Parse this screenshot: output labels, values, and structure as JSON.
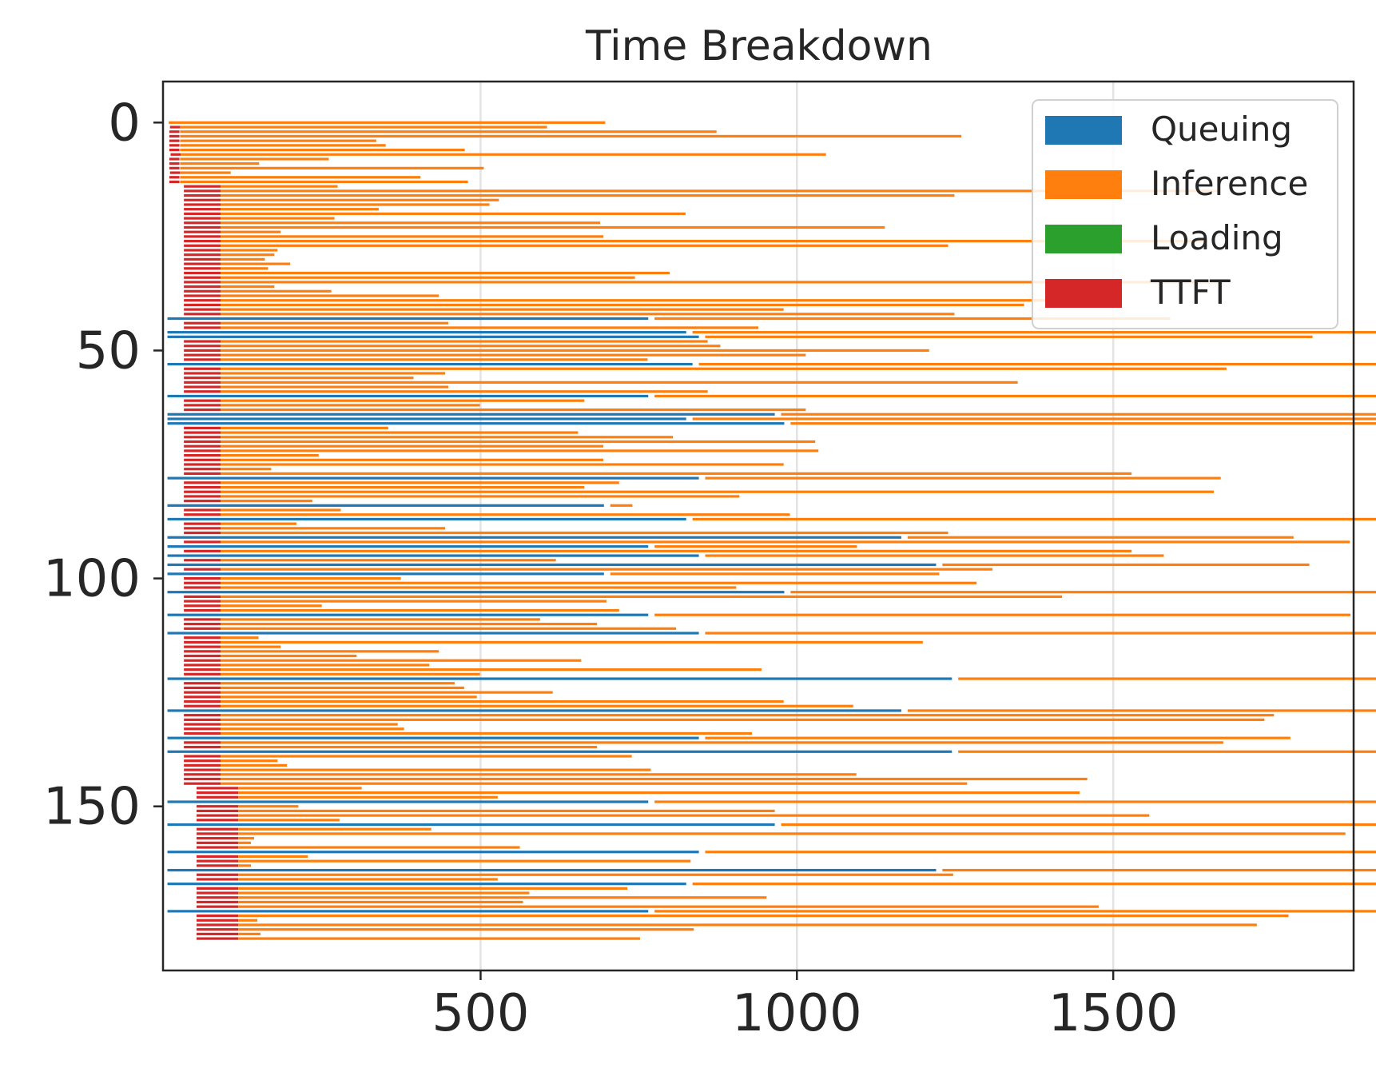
{
  "chart_data": {
    "type": "bar",
    "orientation": "horizontal-gantt",
    "title": "Time Breakdown",
    "xlabel": "",
    "ylabel": "",
    "xlim": [
      -2,
      1880
    ],
    "ylim": [
      186,
      -9
    ],
    "y_inverted": true,
    "x_ticks": [
      "500",
      "1000",
      "1500"
    ],
    "y_ticks": [
      "0",
      "50",
      "100",
      "150"
    ],
    "grid": "x-only",
    "legend_placement": "upper right",
    "colors": {
      "Queuing": "#1f77b4",
      "Inference": "#ff7f0e",
      "Loading": "#2ca02c",
      "TTFT": "#d62728"
    },
    "series": [
      {
        "name": "Queuing"
      },
      {
        "name": "Inference"
      },
      {
        "name": "Loading"
      },
      {
        "name": "TTFT"
      }
    ],
    "requests": [
      [
        0,
        0,
        0,
        690,
        0
      ],
      [
        0,
        2,
        0,
        580,
        18
      ],
      [
        0,
        1,
        0,
        848,
        18
      ],
      [
        0,
        1,
        0,
        1235,
        18
      ],
      [
        0,
        1,
        0,
        310,
        18
      ],
      [
        0,
        1,
        0,
        325,
        18
      ],
      [
        0,
        1,
        0,
        450,
        18
      ],
      [
        0,
        3,
        0,
        1020,
        18
      ],
      [
        0,
        1,
        0,
        235,
        18
      ],
      [
        0,
        1,
        0,
        125,
        18
      ],
      [
        0,
        1,
        0,
        480,
        18
      ],
      [
        0,
        2,
        0,
        80,
        18
      ],
      [
        0,
        1,
        0,
        380,
        18
      ],
      [
        0,
        1,
        0,
        455,
        18
      ],
      [
        0,
        24,
        0,
        185,
        60
      ],
      [
        0,
        24,
        0,
        1580,
        60
      ],
      [
        0,
        24,
        0,
        1160,
        60
      ],
      [
        0,
        24,
        0,
        440,
        60
      ],
      [
        0,
        24,
        0,
        425,
        60
      ],
      [
        0,
        24,
        0,
        250,
        60
      ],
      [
        0,
        24,
        0,
        735,
        60
      ],
      [
        0,
        24,
        0,
        180,
        60
      ],
      [
        0,
        24,
        0,
        600,
        60
      ],
      [
        0,
        24,
        0,
        1050,
        60
      ],
      [
        0,
        24,
        0,
        95,
        60
      ],
      [
        0,
        24,
        0,
        605,
        60
      ],
      [
        0,
        24,
        0,
        1560,
        60
      ],
      [
        0,
        24,
        0,
        1150,
        60
      ],
      [
        0,
        24,
        0,
        90,
        60
      ],
      [
        0,
        24,
        0,
        85,
        60
      ],
      [
        0,
        24,
        0,
        70,
        60
      ],
      [
        0,
        24,
        0,
        110,
        60
      ],
      [
        0,
        24,
        0,
        75,
        60
      ],
      [
        0,
        24,
        0,
        710,
        60
      ],
      [
        0,
        24,
        0,
        655,
        60
      ],
      [
        0,
        24,
        0,
        1580,
        60
      ],
      [
        0,
        24,
        0,
        85,
        60
      ],
      [
        0,
        24,
        0,
        175,
        60
      ],
      [
        0,
        24,
        0,
        345,
        60
      ],
      [
        0,
        24,
        0,
        1410,
        60
      ],
      [
        0,
        24,
        0,
        1270,
        60
      ],
      [
        0,
        24,
        0,
        890,
        60
      ],
      [
        0,
        24,
        0,
        1160,
        60
      ],
      [
        760,
        0,
        0,
        815,
        0
      ],
      [
        0,
        24,
        0,
        360,
        60
      ],
      [
        0,
        24,
        0,
        850,
        60
      ],
      [
        820,
        0,
        0,
        1575,
        0
      ],
      [
        840,
        0,
        0,
        960,
        0
      ],
      [
        0,
        24,
        0,
        770,
        60
      ],
      [
        0,
        24,
        0,
        790,
        60
      ],
      [
        0,
        24,
        0,
        1120,
        60
      ],
      [
        0,
        24,
        0,
        925,
        60
      ],
      [
        0,
        24,
        0,
        675,
        60
      ],
      [
        830,
        0,
        0,
        1235,
        0
      ],
      [
        0,
        24,
        0,
        1590,
        60
      ],
      [
        0,
        24,
        0,
        355,
        60
      ],
      [
        0,
        24,
        0,
        305,
        60
      ],
      [
        0,
        24,
        0,
        1260,
        60
      ],
      [
        0,
        24,
        0,
        360,
        60
      ],
      [
        0,
        24,
        0,
        770,
        60
      ],
      [
        760,
        0,
        0,
        1525,
        0
      ],
      [
        0,
        24,
        0,
        575,
        60
      ],
      [
        0,
        24,
        0,
        410,
        60
      ],
      [
        0,
        24,
        0,
        925,
        60
      ],
      [
        960,
        0,
        0,
        1510,
        0
      ],
      [
        820,
        0,
        0,
        1690,
        0
      ],
      [
        975,
        0,
        0,
        1505,
        0
      ],
      [
        0,
        24,
        0,
        265,
        60
      ],
      [
        0,
        24,
        0,
        565,
        60
      ],
      [
        0,
        24,
        0,
        715,
        60
      ],
      [
        0,
        24,
        0,
        940,
        60
      ],
      [
        0,
        24,
        0,
        605,
        60
      ],
      [
        0,
        24,
        0,
        945,
        60
      ],
      [
        0,
        24,
        0,
        155,
        60
      ],
      [
        0,
        24,
        0,
        605,
        60
      ],
      [
        0,
        24,
        0,
        890,
        60
      ],
      [
        0,
        24,
        0,
        80,
        60
      ],
      [
        0,
        24,
        0,
        1440,
        60
      ],
      [
        840,
        0,
        0,
        815,
        0
      ],
      [
        0,
        24,
        0,
        630,
        60
      ],
      [
        0,
        24,
        0,
        575,
        60
      ],
      [
        0,
        24,
        0,
        1570,
        60
      ],
      [
        0,
        24,
        0,
        820,
        60
      ],
      [
        0,
        24,
        0,
        145,
        60
      ],
      [
        690,
        0,
        0,
        35,
        0
      ],
      [
        0,
        24,
        0,
        190,
        60
      ],
      [
        0,
        24,
        0,
        900,
        60
      ],
      [
        820,
        0,
        0,
        1775,
        0
      ],
      [
        0,
        24,
        0,
        120,
        60
      ],
      [
        0,
        24,
        0,
        355,
        60
      ],
      [
        0,
        24,
        0,
        1150,
        60
      ],
      [
        1160,
        0,
        0,
        610,
        0
      ],
      [
        0,
        24,
        0,
        1785,
        60
      ],
      [
        760,
        0,
        0,
        320,
        0
      ],
      [
        0,
        24,
        0,
        1440,
        60
      ],
      [
        840,
        0,
        0,
        725,
        0
      ],
      [
        0,
        24,
        0,
        530,
        60
      ],
      [
        1215,
        0,
        0,
        580,
        0
      ],
      [
        0,
        24,
        0,
        1220,
        60
      ],
      [
        690,
        0,
        0,
        520,
        0
      ],
      [
        0,
        24,
        0,
        285,
        60
      ],
      [
        0,
        24,
        0,
        1195,
        60
      ],
      [
        0,
        24,
        0,
        815,
        60
      ],
      [
        975,
        0,
        0,
        1340,
        0
      ],
      [
        0,
        24,
        0,
        1330,
        60
      ],
      [
        0,
        24,
        0,
        610,
        60
      ],
      [
        0,
        24,
        0,
        160,
        60
      ],
      [
        0,
        24,
        0,
        630,
        60
      ],
      [
        760,
        0,
        0,
        1100,
        0
      ],
      [
        0,
        24,
        0,
        505,
        60
      ],
      [
        0,
        24,
        0,
        595,
        60
      ],
      [
        0,
        24,
        0,
        720,
        60
      ],
      [
        840,
        0,
        0,
        1535,
        0
      ],
      [
        0,
        24,
        0,
        60,
        60
      ],
      [
        0,
        24,
        0,
        1110,
        60
      ],
      [
        0,
        24,
        0,
        95,
        60
      ],
      [
        0,
        24,
        0,
        345,
        60
      ],
      [
        0,
        24,
        0,
        215,
        60
      ],
      [
        0,
        24,
        0,
        570,
        60
      ],
      [
        0,
        24,
        0,
        330,
        60
      ],
      [
        0,
        24,
        0,
        855,
        60
      ],
      [
        0,
        24,
        0,
        410,
        60
      ],
      [
        1240,
        0,
        0,
        1535,
        0
      ],
      [
        0,
        24,
        0,
        370,
        60
      ],
      [
        0,
        24,
        0,
        385,
        60
      ],
      [
        0,
        24,
        0,
        525,
        60
      ],
      [
        0,
        24,
        0,
        405,
        60
      ],
      [
        0,
        24,
        0,
        890,
        60
      ],
      [
        0,
        24,
        0,
        1000,
        60
      ],
      [
        1160,
        0,
        0,
        1575,
        0
      ],
      [
        0,
        24,
        0,
        1665,
        60
      ],
      [
        0,
        24,
        0,
        1650,
        60
      ],
      [
        0,
        24,
        0,
        280,
        60
      ],
      [
        0,
        24,
        0,
        290,
        60
      ],
      [
        0,
        24,
        0,
        840,
        60
      ],
      [
        840,
        0,
        0,
        925,
        0
      ],
      [
        0,
        24,
        0,
        1585,
        60
      ],
      [
        0,
        24,
        0,
        595,
        60
      ],
      [
        1240,
        0,
        0,
        1570,
        0
      ],
      [
        0,
        24,
        0,
        650,
        60
      ],
      [
        0,
        24,
        0,
        90,
        60
      ],
      [
        0,
        24,
        0,
        105,
        60
      ],
      [
        0,
        24,
        0,
        680,
        60
      ],
      [
        0,
        24,
        0,
        1005,
        60
      ],
      [
        0,
        24,
        0,
        1370,
        60
      ],
      [
        0,
        24,
        0,
        1180,
        60
      ],
      [
        0,
        44,
        0,
        195,
        68
      ],
      [
        0,
        44,
        0,
        1330,
        68
      ],
      [
        0,
        44,
        0,
        410,
        68
      ],
      [
        760,
        0,
        0,
        1285,
        0
      ],
      [
        0,
        44,
        0,
        95,
        68
      ],
      [
        0,
        44,
        0,
        848,
        68
      ],
      [
        0,
        44,
        0,
        1440,
        68
      ],
      [
        0,
        44,
        0,
        160,
        68
      ],
      [
        960,
        0,
        0,
        1010,
        0
      ],
      [
        0,
        44,
        0,
        305,
        68
      ],
      [
        0,
        44,
        0,
        1750,
        68
      ],
      [
        0,
        44,
        0,
        25,
        68
      ],
      [
        0,
        44,
        0,
        20,
        68
      ],
      [
        0,
        44,
        0,
        445,
        68
      ],
      [
        840,
        0,
        0,
        1210,
        0
      ],
      [
        0,
        44,
        0,
        110,
        68
      ],
      [
        0,
        44,
        0,
        715,
        68
      ],
      [
        0,
        44,
        0,
        20,
        68
      ],
      [
        1215,
        0,
        0,
        1715,
        0
      ],
      [
        0,
        44,
        0,
        1130,
        68
      ],
      [
        0,
        44,
        0,
        410,
        68
      ],
      [
        820,
        0,
        0,
        1310,
        0
      ],
      [
        0,
        44,
        0,
        615,
        68
      ],
      [
        0,
        44,
        0,
        460,
        68
      ],
      [
        0,
        44,
        0,
        835,
        68
      ],
      [
        0,
        44,
        0,
        450,
        68
      ],
      [
        0,
        44,
        0,
        1360,
        68
      ],
      [
        760,
        0,
        0,
        1665,
        0
      ],
      [
        0,
        44,
        0,
        1660,
        68
      ],
      [
        0,
        44,
        0,
        30,
        68
      ],
      [
        0,
        44,
        0,
        1610,
        68
      ],
      [
        0,
        44,
        0,
        720,
        68
      ],
      [
        0,
        44,
        0,
        35,
        68
      ],
      [
        0,
        44,
        0,
        635,
        68
      ]
    ]
  },
  "legend": [
    {
      "label": "Queuing",
      "color": "#1f77b4"
    },
    {
      "label": "Inference",
      "color": "#ff7f0e"
    },
    {
      "label": "Loading",
      "color": "#2ca02c"
    },
    {
      "label": "TTFT",
      "color": "#d62728"
    }
  ]
}
